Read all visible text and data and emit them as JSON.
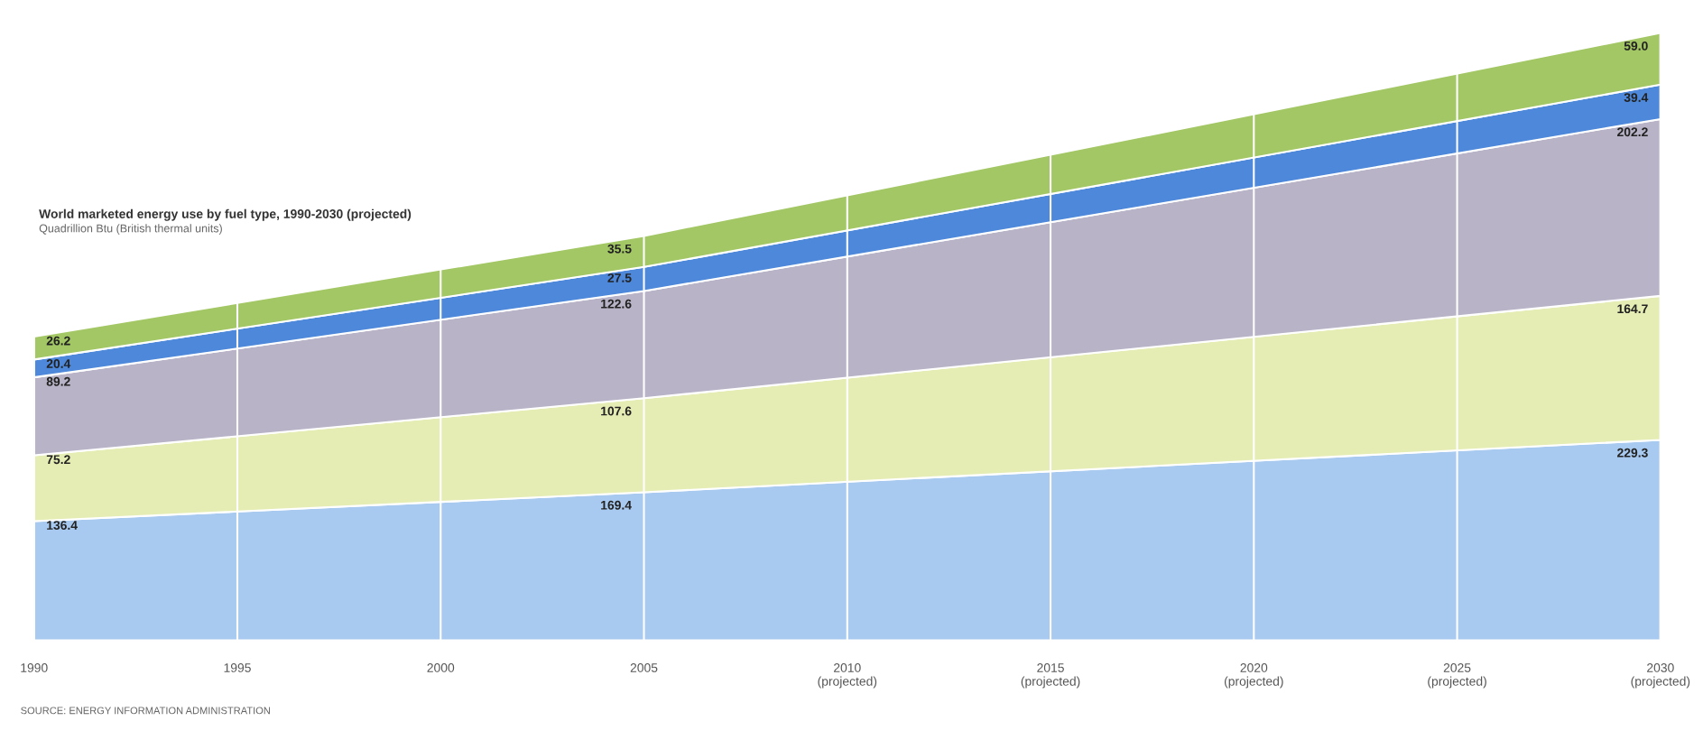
{
  "chart_data": {
    "type": "area",
    "stacked": true,
    "title": "World marketed energy use by fuel type, 1990-2030 (projected)",
    "subtitle": "Quadrillion Btu (British thermal units)",
    "annotations": [
      "SOURCE: ENERGY INFORMATION ADMINISTRATION"
    ],
    "x": [
      1990,
      2005,
      2030
    ],
    "xlim": [
      1990,
      2030
    ],
    "xticks": [
      1990,
      1995,
      2000,
      2005,
      {
        "value": 2010,
        "label": "2010\n(projected)"
      },
      {
        "value": 2015,
        "label": "2015\n(projected)"
      },
      {
        "value": 2020,
        "label": "2020\n(projected)"
      },
      {
        "value": 2025,
        "label": "2025\n(projected)"
      },
      {
        "value": 2030,
        "label": "2030\n(projected)"
      }
    ],
    "tick_labels": "x",
    "grid": "x",
    "series": [
      {
        "color": "#a9caf0",
        "values": [
          136.4,
          169.4,
          229.3
        ],
        "value_labels": [
          "136.4",
          "169.4",
          "229.3"
        ]
      },
      {
        "color": "#e6edb4",
        "values": [
          75.2,
          107.6,
          164.7
        ],
        "value_labels": [
          "75.2",
          "107.6",
          "164.7"
        ]
      },
      {
        "color": "#b8b3c6",
        "values": [
          89.2,
          122.6,
          202.2
        ],
        "value_labels": [
          "89.2",
          "122.6",
          "202.2"
        ]
      },
      {
        "color": "#4d88da",
        "values": [
          20.4,
          27.5,
          39.4
        ],
        "value_labels": [
          "20.4",
          "27.5",
          "39.4"
        ]
      },
      {
        "color": "#a3c765",
        "values": [
          26.2,
          35.5,
          59.0
        ],
        "value_labels": [
          "26.2",
          "35.5",
          "59.0"
        ]
      }
    ]
  }
}
